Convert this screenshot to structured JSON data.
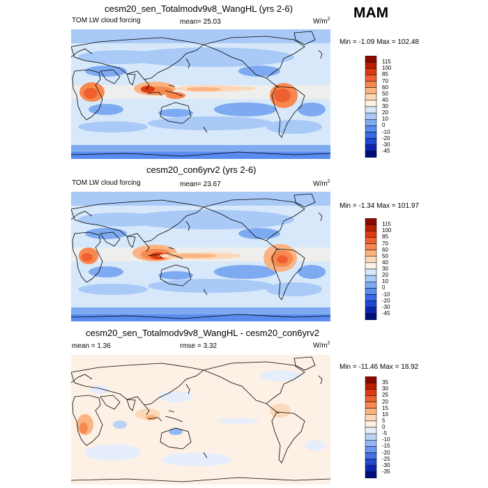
{
  "season": "MAM",
  "panels": [
    {
      "title": "cesm20_sen_Totalmodv9v8_WangHL (yrs 2-6)",
      "left_label": "TOM LW cloud forcing",
      "center_label": "mean=  25.03",
      "units": "W/m",
      "units_sup": "2",
      "minmax": "Min =  -1.09 Max = 102.48",
      "colorbar": {
        "labels": [
          "115",
          "100",
          "85",
          "70",
          "60",
          "50",
          "40",
          "30",
          "20",
          "10",
          "0",
          "-10",
          "-20",
          "-30",
          "-45"
        ],
        "colors": [
          "#8b0a00",
          "#b81e00",
          "#dc3a10",
          "#ef6030",
          "#f7894f",
          "#fbb383",
          "#fcd8b8",
          "#fdf2e4",
          "#d7e8fa",
          "#a9c9f6",
          "#7eaaf1",
          "#5a8bf0",
          "#3a68e8",
          "#1e47d4",
          "#0a26b0",
          "#000e7a"
        ]
      }
    },
    {
      "title": "cesm20_con6yrv2 (yrs 2-6)",
      "left_label": "TOM LW cloud forcing",
      "center_label": "mean=  23.67",
      "units": "W/m",
      "units_sup": "2",
      "minmax": "Min =  -1.34 Max = 101.97",
      "colorbar": {
        "labels": [
          "115",
          "100",
          "85",
          "70",
          "60",
          "50",
          "40",
          "30",
          "20",
          "10",
          "0",
          "-10",
          "-20",
          "-30",
          "-45"
        ],
        "colors": [
          "#8b0a00",
          "#b81e00",
          "#dc3a10",
          "#ef6030",
          "#f7894f",
          "#fbb383",
          "#fcd8b8",
          "#fdf2e4",
          "#d7e8fa",
          "#a9c9f6",
          "#7eaaf1",
          "#5a8bf0",
          "#3a68e8",
          "#1e47d4",
          "#0a26b0",
          "#000e7a"
        ]
      }
    },
    {
      "title": "cesm20_sen_Totalmodv9v8_WangHL - cesm20_con6yrv2",
      "left_label": "mean =   1.36",
      "center_label": "rmse =   3.32",
      "units": "W/m",
      "units_sup": "2",
      "minmax": "Min = -11.46 Max =  18.92",
      "colorbar": {
        "labels": [
          "35",
          "30",
          "25",
          "20",
          "15",
          "10",
          "5",
          "0",
          "-5",
          "-10",
          "-15",
          "-20",
          "-25",
          "-30",
          "-35"
        ],
        "colors": [
          "#8b0a00",
          "#b81e00",
          "#dc3a10",
          "#ef6030",
          "#f7894f",
          "#fbb383",
          "#fcd8b8",
          "#fdf0e4",
          "#e6eefc",
          "#bcd3f8",
          "#93b6f3",
          "#6b95ef",
          "#4471e6",
          "#2148cf",
          "#0a26b0",
          "#000e7a"
        ]
      }
    }
  ]
}
